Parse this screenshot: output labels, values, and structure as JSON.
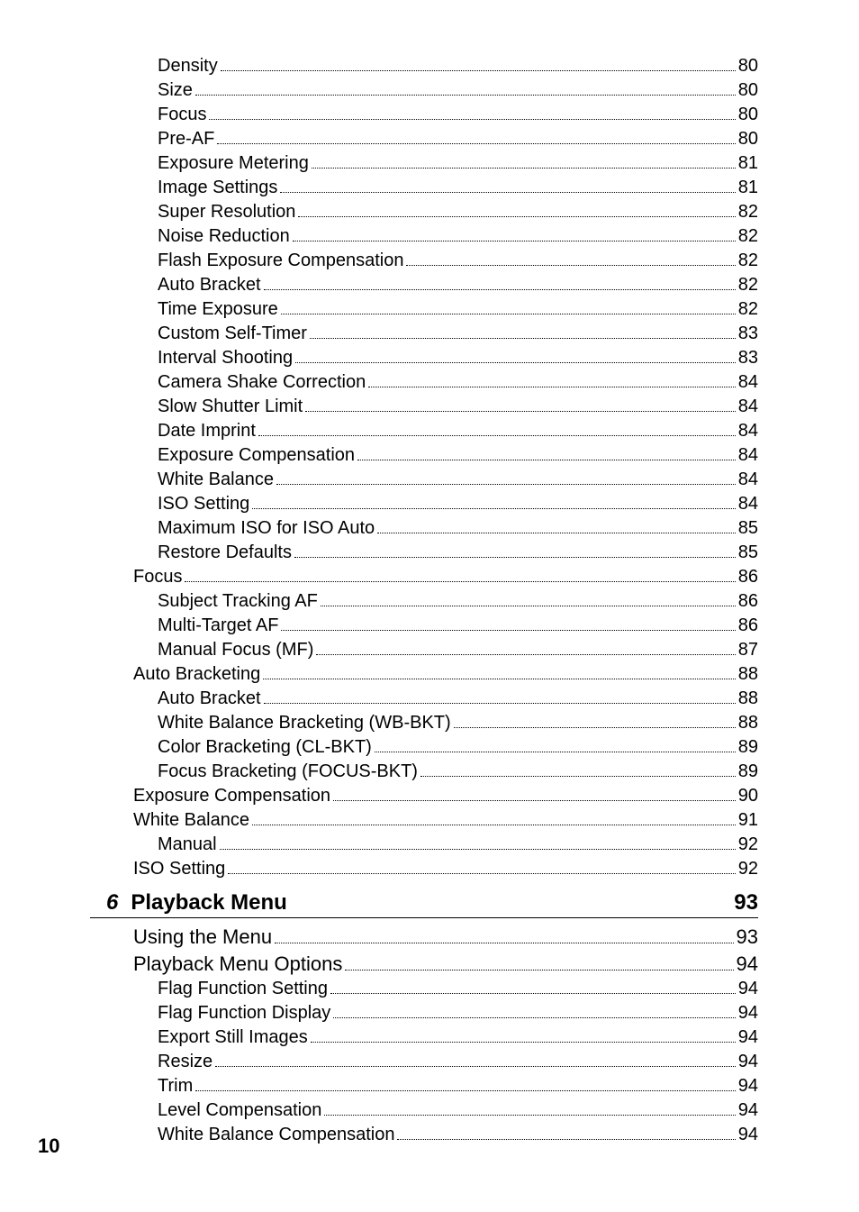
{
  "colors": {
    "text": "#000000",
    "background": "#ffffff"
  },
  "font": {
    "body_size_pt": 15,
    "section_size_pt": 16,
    "chapter_size_pt": 18
  },
  "page_number": "10",
  "pre_items": [
    {
      "level": 3,
      "label": "Density",
      "page": "80"
    },
    {
      "level": 3,
      "label": "Size",
      "page": "80"
    },
    {
      "level": 3,
      "label": "Focus",
      "page": "80"
    },
    {
      "level": 3,
      "label": "Pre-AF",
      "page": "80"
    },
    {
      "level": 3,
      "label": "Exposure Metering",
      "page": "81"
    },
    {
      "level": 3,
      "label": "Image Settings",
      "page": "81"
    },
    {
      "level": 3,
      "label": "Super Resolution",
      "page": "82"
    },
    {
      "level": 3,
      "label": "Noise Reduction",
      "page": "82"
    },
    {
      "level": 3,
      "label": "Flash Exposure Compensation",
      "page": "82"
    },
    {
      "level": 3,
      "label": "Auto Bracket",
      "page": "82"
    },
    {
      "level": 3,
      "label": "Time Exposure",
      "page": "82"
    },
    {
      "level": 3,
      "label": "Custom Self-Timer",
      "page": "83"
    },
    {
      "level": 3,
      "label": "Interval Shooting",
      "page": "83"
    },
    {
      "level": 3,
      "label": "Camera Shake Correction",
      "page": "84"
    },
    {
      "level": 3,
      "label": "Slow Shutter Limit",
      "page": "84"
    },
    {
      "level": 3,
      "label": "Date Imprint",
      "page": "84"
    },
    {
      "level": 3,
      "label": "Exposure Compensation",
      "page": "84"
    },
    {
      "level": 3,
      "label": "White Balance",
      "page": "84"
    },
    {
      "level": 3,
      "label": "ISO Setting",
      "page": "84"
    },
    {
      "level": 3,
      "label": "Maximum ISO for ISO Auto",
      "page": "85"
    },
    {
      "level": 3,
      "label": "Restore Defaults",
      "page": "85"
    },
    {
      "level": 2,
      "label": "Focus",
      "page": "86"
    },
    {
      "level": 3,
      "label": "Subject Tracking AF",
      "page": "86"
    },
    {
      "level": 3,
      "label": "Multi-Target AF",
      "page": "86"
    },
    {
      "level": 3,
      "label": "Manual Focus (MF)",
      "page": "87"
    },
    {
      "level": 2,
      "label": "Auto Bracketing",
      "page": "88"
    },
    {
      "level": 3,
      "label": "Auto Bracket",
      "page": "88"
    },
    {
      "level": 3,
      "label": "White Balance Bracketing (WB-BKT)",
      "page": "88"
    },
    {
      "level": 3,
      "label": "Color Bracketing (CL-BKT)",
      "page": "89"
    },
    {
      "level": 3,
      "label": "Focus Bracketing (FOCUS-BKT)",
      "page": "89"
    },
    {
      "level": 2,
      "label": "Exposure Compensation",
      "page": "90"
    },
    {
      "level": 2,
      "label": "White Balance",
      "page": "91"
    },
    {
      "level": 3,
      "label": "Manual",
      "page": "92"
    },
    {
      "level": 2,
      "label": "ISO Setting",
      "page": "92"
    }
  ],
  "chapter": {
    "num": "6",
    "title": "Playback Menu",
    "page": "93"
  },
  "post_items": [
    {
      "level": 1,
      "label": "Using the Menu",
      "page": "93"
    },
    {
      "level": 1,
      "label": "Playback Menu Options",
      "page": "94"
    },
    {
      "level": 3,
      "label": "Flag Function Setting",
      "page": "94"
    },
    {
      "level": 3,
      "label": "Flag Function Display",
      "page": "94"
    },
    {
      "level": 3,
      "label": "Export Still Images",
      "page": "94"
    },
    {
      "level": 3,
      "label": "Resize",
      "page": "94"
    },
    {
      "level": 3,
      "label": "Trim",
      "page": "94"
    },
    {
      "level": 3,
      "label": "Level Compensation",
      "page": "94"
    },
    {
      "level": 3,
      "label": "White Balance Compensation",
      "page": "94"
    }
  ]
}
